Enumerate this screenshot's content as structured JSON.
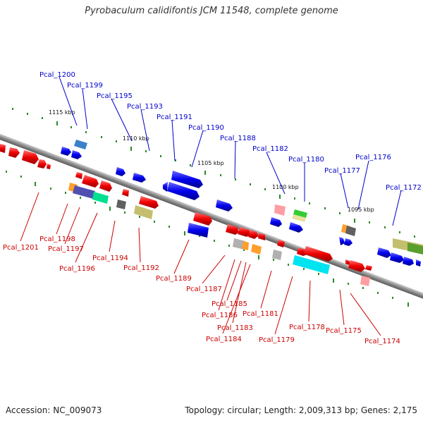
{
  "title": "Pyrobaculum calidifontis JCM 11548, complete genome",
  "footer": {
    "accession": "Accession: NC_009073",
    "topology": "Topology: circular; Length: 2,009,313 bp; Genes: 2,175"
  },
  "colors": {
    "forward_label": "#0000cc",
    "reverse_label": "#cc0000",
    "backbone": "#888888",
    "tick_green": "#2a8a2a"
  },
  "ruler": [
    "1115 kbp",
    "1110 kbp",
    "1105 kbp",
    "1100 kbp",
    "1095 kbp"
  ],
  "forward_labels": [
    "Pcal_1200",
    "Pcal_1199",
    "Pcal_1195",
    "Pcal_1193",
    "Pcal_1191",
    "Pcal_1190",
    "Pcal_1188",
    "Pcal_1182",
    "Pcal_1180",
    "Pcal_1177",
    "Pcal_1176",
    "Pcal_1172"
  ],
  "reverse_labels": [
    "Pcal_1201",
    "Pcal_1198",
    "Pcal_1197",
    "Pcal_1196",
    "Pcal_1194",
    "Pcal_1192",
    "Pcal_1189",
    "Pcal_1187",
    "Pcal_1186",
    "Pcal_1185",
    "Pcal_1183",
    "Pcal_1184",
    "Pcal_1181",
    "Pcal_1179",
    "Pcal_1178",
    "Pcal_1175",
    "Pcal_1174"
  ]
}
